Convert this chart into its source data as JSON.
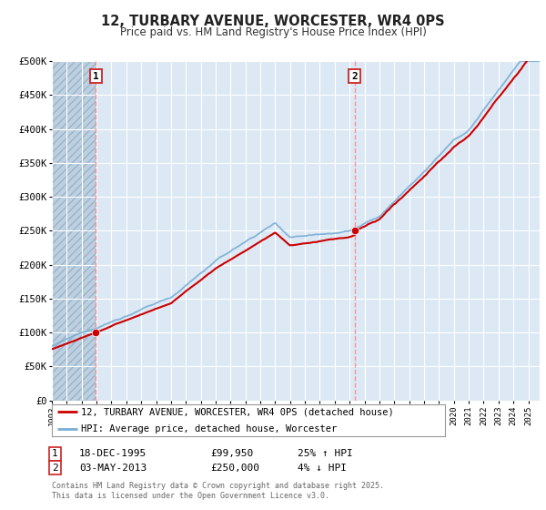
{
  "title": "12, TURBARY AVENUE, WORCESTER, WR4 0PS",
  "subtitle": "Price paid vs. HM Land Registry's House Price Index (HPI)",
  "ylabel_ticks": [
    "£0",
    "£50K",
    "£100K",
    "£150K",
    "£200K",
    "£250K",
    "£300K",
    "£350K",
    "£400K",
    "£450K",
    "£500K"
  ],
  "ytick_values": [
    0,
    50000,
    100000,
    150000,
    200000,
    250000,
    300000,
    350000,
    400000,
    450000,
    500000
  ],
  "ylim": [
    0,
    500000
  ],
  "xlim_start": 1993.0,
  "xlim_end": 2025.75,
  "transaction1": {
    "date_num": 1995.96,
    "price": 99950,
    "label": "1",
    "text": "18-DEC-1995",
    "price_str": "£99,950",
    "hpi_str": "25% ↑ HPI"
  },
  "transaction2": {
    "date_num": 2013.33,
    "price": 250000,
    "label": "2",
    "text": "03-MAY-2013",
    "price_str": "£250,000",
    "hpi_str": "4% ↓ HPI"
  },
  "legend_line1": "12, TURBARY AVENUE, WORCESTER, WR4 0PS (detached house)",
  "legend_line2": "HPI: Average price, detached house, Worcester",
  "footer": "Contains HM Land Registry data © Crown copyright and database right 2025.\nThis data is licensed under the Open Government Licence v3.0.",
  "background_color": "#ffffff",
  "plot_bg_color": "#dce9f5",
  "grid_color": "#ffffff",
  "red_line_color": "#cc0000",
  "blue_line_color": "#7aaed6",
  "red_dot_color": "#cc0000",
  "vline_color": "#ff8888",
  "hatch_color": "#b0c4d8"
}
